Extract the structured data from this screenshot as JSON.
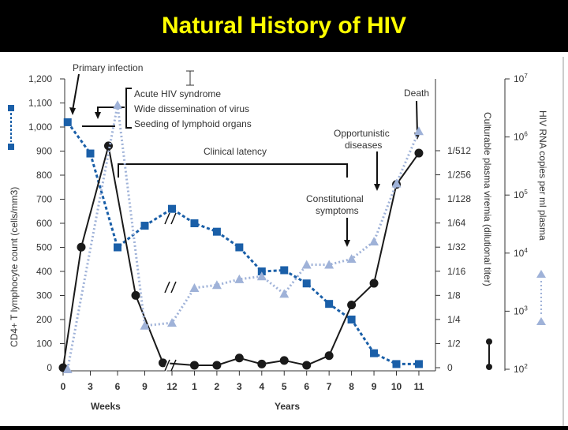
{
  "slide": {
    "title": "Natural History of HIV"
  },
  "chart_data": {
    "type": "line",
    "x_ticks_weeks": [
      "0",
      "3",
      "6",
      "9",
      "12"
    ],
    "x_ticks_years": [
      "1",
      "2",
      "3",
      "4",
      "5",
      "6",
      "7",
      "8",
      "9",
      "10",
      "11"
    ],
    "xlabel_weeks": "Weeks",
    "xlabel_years": "Years",
    "ylabel_left": "CD4+ T lymphocyte count (cells/mm3)",
    "ylim_left": [
      0,
      1200
    ],
    "y_ticks_left": [
      "0",
      "100",
      "200",
      "300",
      "400",
      "500",
      "600",
      "700",
      "800",
      "900",
      "1,000",
      "1,100",
      "1,200"
    ],
    "ylabel_mid": "Culturable plasma viremia (dilutional titer)",
    "y_ticks_mid": [
      "0",
      "1/2",
      "1/4",
      "1/8",
      "1/16",
      "1/32",
      "1/64",
      "1/128",
      "1/256",
      "1/512"
    ],
    "ylabel_right": "HIV RNA copies per ml plasma",
    "y_ticks_right": [
      {
        "base": "10",
        "exp": "7"
      },
      {
        "base": "10",
        "exp": "6"
      },
      {
        "base": "10",
        "exp": "5"
      },
      {
        "base": "10",
        "exp": "4"
      },
      {
        "base": "10",
        "exp": "3"
      },
      {
        "base": "10",
        "exp": "2"
      }
    ],
    "series": [
      {
        "key": "cd4",
        "color": "#1a5fa8",
        "marker": "square",
        "axis": "left",
        "points": [
          {
            "period": "weeks",
            "x": 0.5,
            "y": 1020
          },
          {
            "period": "weeks",
            "x": 3,
            "y": 890
          },
          {
            "period": "weeks",
            "x": 6,
            "y": 500
          },
          {
            "period": "weeks",
            "x": 9,
            "y": 590
          },
          {
            "period": "weeks",
            "x": 12,
            "y": 660
          },
          {
            "period": "years",
            "x": 1,
            "y": 600
          },
          {
            "period": "years",
            "x": 2,
            "y": 565
          },
          {
            "period": "years",
            "x": 3,
            "y": 500
          },
          {
            "period": "years",
            "x": 4,
            "y": 400
          },
          {
            "period": "years",
            "x": 5,
            "y": 405
          },
          {
            "period": "years",
            "x": 6,
            "y": 350
          },
          {
            "period": "years",
            "x": 7,
            "y": 265
          },
          {
            "period": "years",
            "x": 8,
            "y": 200
          },
          {
            "period": "years",
            "x": 9,
            "y": 60
          },
          {
            "period": "years",
            "x": 10,
            "y": 15
          },
          {
            "period": "years",
            "x": 11,
            "y": 15
          }
        ]
      },
      {
        "key": "viremia",
        "color": "#1a1a1a",
        "marker": "circle",
        "axis": "mid",
        "points": [
          {
            "period": "weeks",
            "x": 0,
            "y": 0
          },
          {
            "period": "weeks",
            "x": 2,
            "y": 5
          },
          {
            "period": "weeks",
            "x": 5,
            "y": 9.2
          },
          {
            "period": "weeks",
            "x": 8,
            "y": 3
          },
          {
            "period": "weeks",
            "x": 11,
            "y": 0.2
          },
          {
            "period": "years",
            "x": 1,
            "y": 0.1
          },
          {
            "period": "years",
            "x": 2,
            "y": 0.1
          },
          {
            "period": "years",
            "x": 3,
            "y": 0.4
          },
          {
            "period": "years",
            "x": 4,
            "y": 0.15
          },
          {
            "period": "years",
            "x": 5,
            "y": 0.3
          },
          {
            "period": "years",
            "x": 6,
            "y": 0.1
          },
          {
            "period": "years",
            "x": 7,
            "y": 0.5
          },
          {
            "period": "years",
            "x": 8,
            "y": 2.6
          },
          {
            "period": "years",
            "x": 9,
            "y": 3.5
          },
          {
            "period": "years",
            "x": 10,
            "y": 7.6
          },
          {
            "period": "years",
            "x": 11,
            "y": 8.9
          }
        ]
      },
      {
        "key": "rna",
        "color": "#9fb2d8",
        "marker": "triangle",
        "axis": "right",
        "points": [
          {
            "period": "weeks",
            "x": 0.5,
            "y": 2
          },
          {
            "period": "weeks",
            "x": 6,
            "y": 6.55
          },
          {
            "period": "weeks",
            "x": 9,
            "y": 2.75
          },
          {
            "period": "weeks",
            "x": 12,
            "y": 2.8
          },
          {
            "period": "years",
            "x": 1,
            "y": 3.4
          },
          {
            "period": "years",
            "x": 2,
            "y": 3.45
          },
          {
            "period": "years",
            "x": 3,
            "y": 3.55
          },
          {
            "period": "years",
            "x": 4,
            "y": 3.6
          },
          {
            "period": "years",
            "x": 5,
            "y": 3.3
          },
          {
            "period": "years",
            "x": 6,
            "y": 3.8
          },
          {
            "period": "years",
            "x": 7,
            "y": 3.8
          },
          {
            "period": "years",
            "x": 8,
            "y": 3.9
          },
          {
            "period": "years",
            "x": 9,
            "y": 4.2
          },
          {
            "period": "years",
            "x": 10,
            "y": 5.2
          },
          {
            "period": "years",
            "x": 11,
            "y": 6.1
          }
        ]
      }
    ],
    "annotations": {
      "primary_infection": "Primary infection",
      "acute_lines": [
        "Acute HIV syndrome",
        "Wide dissemination of virus",
        "Seeding of lymphoid organs"
      ],
      "clinical_latency": "Clinical latency",
      "death": "Death",
      "opportunistic_lines": [
        "Opportunistic",
        "diseases"
      ],
      "constitutional_lines": [
        "Constitutional",
        "symptoms"
      ]
    }
  }
}
